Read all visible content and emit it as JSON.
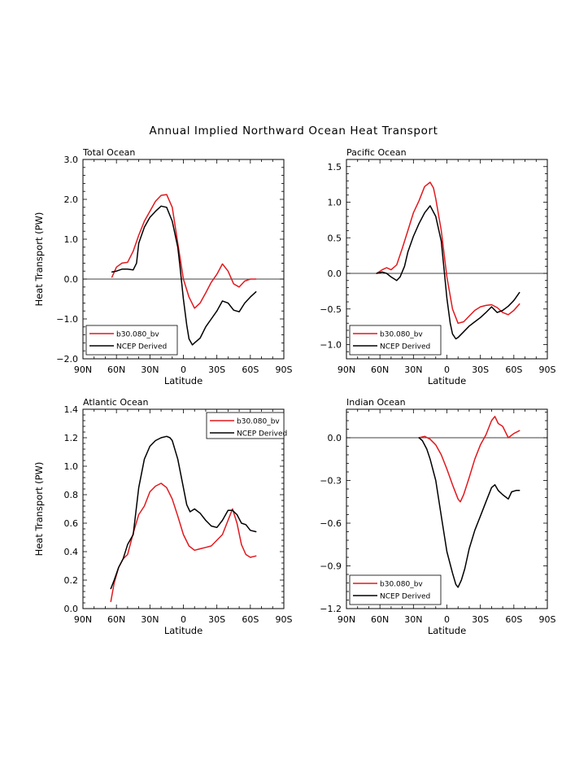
{
  "figure_title": "Annual Implied Northward Ocean Heat Transport",
  "colors": {
    "model": "#e0191e",
    "obs": "#000000",
    "axis": "#000000"
  },
  "chart_data": [
    {
      "type": "line",
      "panel": "Total Ocean",
      "title": "Total Ocean",
      "xlabel": "Latitude",
      "ylabel": "Heat Transport (PW)",
      "xlim": [
        90,
        -90
      ],
      "ylim": [
        -2.0,
        3.0
      ],
      "x_ticks": [
        90,
        60,
        30,
        0,
        -30,
        -60,
        -90
      ],
      "x_tick_labels": [
        "90N",
        "60N",
        "30N",
        "0",
        "30S",
        "60S",
        "90S"
      ],
      "y_ticks": [
        -2.0,
        -1.0,
        0.0,
        1.0,
        2.0,
        3.0
      ],
      "y_tick_labels": [
        "−2.0",
        "−1.0",
        "0.0",
        "1.0",
        "2.0",
        "3.0"
      ],
      "zero_line": true,
      "legend_position": "bottom-left",
      "series": [
        {
          "name": "b30.080_bv",
          "color": "#e0191e",
          "x": [
            64,
            60,
            55,
            50,
            45,
            40,
            35,
            30,
            25,
            20,
            15,
            10,
            5,
            0,
            -5,
            -10,
            -15,
            -20,
            -25,
            -30,
            -35,
            -40,
            -45,
            -50,
            -55,
            -60,
            -65
          ],
          "y": [
            0.05,
            0.3,
            0.4,
            0.42,
            0.7,
            1.1,
            1.45,
            1.7,
            1.95,
            2.1,
            2.12,
            1.8,
            0.9,
            0.0,
            -0.45,
            -0.73,
            -0.6,
            -0.35,
            -0.08,
            0.12,
            0.38,
            0.2,
            -0.12,
            -0.2,
            -0.05,
            0.0,
            0.0
          ]
        },
        {
          "name": "NCEP Derived",
          "color": "#000000",
          "x": [
            64,
            60,
            55,
            50,
            45,
            42,
            40,
            35,
            30,
            25,
            20,
            15,
            10,
            5,
            3,
            0,
            -3,
            -5,
            -8,
            -10,
            -15,
            -20,
            -25,
            -30,
            -35,
            -40,
            -45,
            -50,
            -55,
            -60,
            -65
          ],
          "y": [
            0.18,
            0.2,
            0.25,
            0.25,
            0.23,
            0.4,
            0.9,
            1.3,
            1.55,
            1.7,
            1.83,
            1.8,
            1.45,
            0.8,
            0.3,
            -0.5,
            -1.15,
            -1.5,
            -1.65,
            -1.6,
            -1.48,
            -1.2,
            -1.0,
            -0.8,
            -0.55,
            -0.6,
            -0.78,
            -0.82,
            -0.6,
            -0.45,
            -0.32
          ]
        }
      ]
    },
    {
      "type": "line",
      "panel": "Pacific Ocean",
      "title": "Pacific Ocean",
      "xlabel": "Latitude",
      "ylabel": "",
      "xlim": [
        90,
        -90
      ],
      "ylim": [
        -1.2,
        1.6
      ],
      "x_ticks": [
        90,
        60,
        30,
        0,
        -30,
        -60,
        -90
      ],
      "x_tick_labels": [
        "90N",
        "60N",
        "30N",
        "0",
        "30S",
        "60S",
        "90S"
      ],
      "y_ticks": [
        -1.0,
        -0.5,
        0.0,
        0.5,
        1.0,
        1.5
      ],
      "y_tick_labels": [
        "−1.0",
        "−0.5",
        "0.0",
        "0.5",
        "1.0",
        "1.5"
      ],
      "zero_line": true,
      "legend_position": "bottom-left",
      "series": [
        {
          "name": "b30.080_bv",
          "color": "#e0191e",
          "x": [
            63,
            58,
            54,
            50,
            45,
            40,
            35,
            30,
            25,
            20,
            15,
            12,
            10,
            5,
            0,
            -5,
            -10,
            -15,
            -20,
            -25,
            -30,
            -35,
            -40,
            -45,
            -50,
            -55,
            -60,
            -65
          ],
          "y": [
            0.0,
            0.05,
            0.08,
            0.05,
            0.12,
            0.35,
            0.6,
            0.85,
            1.02,
            1.22,
            1.28,
            1.2,
            1.05,
            0.6,
            -0.05,
            -0.5,
            -0.7,
            -0.68,
            -0.6,
            -0.52,
            -0.47,
            -0.45,
            -0.44,
            -0.48,
            -0.55,
            -0.58,
            -0.52,
            -0.43
          ]
        },
        {
          "name": "NCEP Derived",
          "color": "#000000",
          "x": [
            63,
            58,
            54,
            50,
            45,
            42,
            38,
            35,
            30,
            25,
            20,
            15,
            10,
            5,
            0,
            -3,
            -5,
            -8,
            -10,
            -15,
            -20,
            -25,
            -30,
            -35,
            -40,
            -45,
            -50,
            -55,
            -60,
            -65
          ],
          "y": [
            0.0,
            0.02,
            0.0,
            -0.05,
            -0.1,
            -0.05,
            0.1,
            0.3,
            0.52,
            0.7,
            0.85,
            0.95,
            0.8,
            0.45,
            -0.35,
            -0.7,
            -0.85,
            -0.92,
            -0.9,
            -0.82,
            -0.74,
            -0.68,
            -0.62,
            -0.55,
            -0.47,
            -0.55,
            -0.52,
            -0.46,
            -0.38,
            -0.27
          ]
        }
      ]
    },
    {
      "type": "line",
      "panel": "Atlantic Ocean",
      "title": "Atlantic Ocean",
      "xlabel": "Latitude",
      "ylabel": "Heat Transport (PW)",
      "xlim": [
        90,
        -90
      ],
      "ylim": [
        0.0,
        1.4
      ],
      "x_ticks": [
        90,
        60,
        30,
        0,
        -30,
        -60,
        -90
      ],
      "x_tick_labels": [
        "90N",
        "60N",
        "30N",
        "0",
        "30S",
        "60S",
        "90S"
      ],
      "y_ticks": [
        0.0,
        0.2,
        0.4,
        0.6,
        0.8,
        1.0,
        1.2,
        1.4
      ],
      "y_tick_labels": [
        "0.0",
        "0.2",
        "0.4",
        "0.6",
        "0.8",
        "1.0",
        "1.2",
        "1.4"
      ],
      "zero_line": false,
      "legend_position": "top-right",
      "series": [
        {
          "name": "b30.080_bv",
          "color": "#e0191e",
          "x": [
            65,
            62,
            58,
            54,
            50,
            45,
            40,
            35,
            30,
            25,
            20,
            15,
            10,
            5,
            0,
            -5,
            -10,
            -15,
            -20,
            -25,
            -30,
            -35,
            -40,
            -44,
            -48,
            -52,
            -56,
            -60,
            -65
          ],
          "y": [
            0.05,
            0.18,
            0.29,
            0.35,
            0.38,
            0.53,
            0.66,
            0.72,
            0.82,
            0.86,
            0.88,
            0.85,
            0.77,
            0.65,
            0.52,
            0.44,
            0.41,
            0.42,
            0.43,
            0.44,
            0.48,
            0.52,
            0.62,
            0.7,
            0.6,
            0.45,
            0.38,
            0.36,
            0.37
          ]
        },
        {
          "name": "NCEP Derived",
          "color": "#000000",
          "x": [
            65,
            62,
            58,
            54,
            50,
            45,
            40,
            35,
            30,
            25,
            20,
            15,
            12,
            10,
            5,
            0,
            -3,
            -6,
            -10,
            -15,
            -20,
            -25,
            -30,
            -35,
            -40,
            -44,
            -48,
            -52,
            -56,
            -60,
            -65
          ],
          "y": [
            0.14,
            0.2,
            0.29,
            0.35,
            0.45,
            0.52,
            0.85,
            1.05,
            1.14,
            1.18,
            1.2,
            1.21,
            1.2,
            1.18,
            1.05,
            0.85,
            0.73,
            0.68,
            0.7,
            0.67,
            0.62,
            0.58,
            0.57,
            0.62,
            0.69,
            0.69,
            0.66,
            0.6,
            0.59,
            0.55,
            0.54
          ]
        }
      ]
    },
    {
      "type": "line",
      "panel": "Indian Ocean",
      "title": "Indian Ocean",
      "xlabel": "Latitude",
      "ylabel": "",
      "xlim": [
        90,
        -90
      ],
      "ylim": [
        -1.2,
        0.2
      ],
      "x_ticks": [
        90,
        60,
        30,
        0,
        -30,
        -60,
        -90
      ],
      "x_tick_labels": [
        "90N",
        "60N",
        "30N",
        "0",
        "30S",
        "60S",
        "90S"
      ],
      "y_ticks": [
        -1.2,
        -0.9,
        -0.6,
        -0.3,
        0.0
      ],
      "y_tick_labels": [
        "−1.2",
        "−0.9",
        "−0.6",
        "−0.3",
        "0.0"
      ],
      "zero_line": true,
      "legend_position": "bottom-left",
      "series": [
        {
          "name": "b30.080_bv",
          "color": "#e0191e",
          "x": [
            25,
            20,
            15,
            10,
            5,
            0,
            -5,
            -10,
            -12,
            -15,
            -20,
            -25,
            -30,
            -35,
            -40,
            -43,
            -46,
            -50,
            -55,
            -60,
            -65
          ],
          "y": [
            0.0,
            0.01,
            -0.01,
            -0.05,
            -0.12,
            -0.22,
            -0.33,
            -0.43,
            -0.45,
            -0.4,
            -0.28,
            -0.15,
            -0.05,
            0.02,
            0.12,
            0.15,
            0.1,
            0.08,
            0.0,
            0.03,
            0.05
          ]
        },
        {
          "name": "NCEP Derived",
          "color": "#000000",
          "x": [
            25,
            22,
            18,
            15,
            10,
            5,
            0,
            -5,
            -8,
            -10,
            -13,
            -16,
            -20,
            -25,
            -30,
            -35,
            -40,
            -43,
            -46,
            -50,
            -55,
            -58,
            -62,
            -65
          ],
          "y": [
            0.0,
            -0.02,
            -0.08,
            -0.15,
            -0.3,
            -0.55,
            -0.8,
            -0.95,
            -1.03,
            -1.05,
            -1.0,
            -0.92,
            -0.78,
            -0.65,
            -0.55,
            -0.45,
            -0.35,
            -0.33,
            -0.37,
            -0.4,
            -0.43,
            -0.38,
            -0.37,
            -0.37
          ]
        }
      ]
    }
  ]
}
